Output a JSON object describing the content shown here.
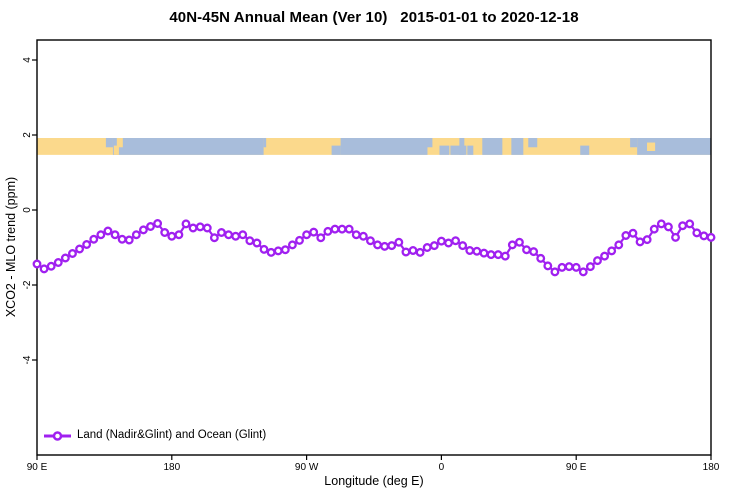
{
  "chart_data": {
    "type": "line",
    "title": "40N-45N Annual Mean (Ver 10)   2015-01-01 to 2020-12-18",
    "xlabel": "Longitude (deg E)",
    "ylabel": "XCO2 - MLO trend (ppm)",
    "grid": false,
    "x_axis": {
      "span_deg": 450,
      "ticks": [
        {
          "deg": 0,
          "label": "90 E"
        },
        {
          "deg": 90,
          "label": "180"
        },
        {
          "deg": 180,
          "label": "90 W"
        },
        {
          "deg": 270,
          "label": "0"
        },
        {
          "deg": 360,
          "label": "90 E"
        },
        {
          "deg": 450,
          "label": "180"
        }
      ]
    },
    "y_axis": {
      "tick_values": [
        4,
        2,
        0,
        -2,
        -4
      ],
      "range_ppm": [
        -6.5,
        4.5
      ]
    },
    "series": [
      {
        "name": "Land (Nadir&Glint) and Ocean (Glint)",
        "color": "#A020F0",
        "marker": "open-circle",
        "lon_deg_offset_start": 0,
        "values_ppm": [
          -1.44,
          -1.57,
          -1.5,
          -1.4,
          -1.28,
          -1.16,
          -1.04,
          -0.92,
          -0.78,
          -0.66,
          -0.56,
          -0.66,
          -0.78,
          -0.8,
          -0.66,
          -0.53,
          -0.44,
          -0.36,
          -0.6,
          -0.7,
          -0.66,
          -0.37,
          -0.48,
          -0.45,
          -0.48,
          -0.74,
          -0.6,
          -0.66,
          -0.7,
          -0.66,
          -0.82,
          -0.88,
          -1.05,
          -1.13,
          -1.09,
          -1.06,
          -0.93,
          -0.81,
          -0.66,
          -0.59,
          -0.74,
          -0.57,
          -0.51,
          -0.51,
          -0.51,
          -0.66,
          -0.7,
          -0.82,
          -0.93,
          -0.97,
          -0.95,
          -0.86,
          -1.12,
          -1.08,
          -1.13,
          -1.0,
          -0.95,
          -0.83,
          -0.88,
          -0.82,
          -0.95,
          -1.08,
          -1.1,
          -1.15,
          -1.19,
          -1.19,
          -1.23,
          -0.93,
          -0.86,
          -1.06,
          -1.11,
          -1.29,
          -1.49,
          -1.65,
          -1.53,
          -1.51,
          -1.53,
          -1.65,
          -1.51,
          -1.35,
          -1.23,
          -1.09,
          -0.93,
          -0.68,
          -0.62,
          -0.85,
          -0.79,
          -0.51,
          -0.37,
          -0.45,
          -0.73,
          -0.42,
          -0.37,
          -0.61,
          -0.69,
          -0.73
        ]
      }
    ],
    "land_ocean_band": {
      "top_ppm": 1.92,
      "bottom_ppm": 1.47,
      "land_color": "#FBD98C",
      "ocean_color": "#A8BDDB",
      "ocean_segments": [
        {
          "from_deg": 46.0,
          "to_deg": 50.7,
          "part": "top"
        },
        {
          "from_deg": 50.7,
          "to_deg": 151.3,
          "part": "full"
        },
        {
          "from_deg": 151.3,
          "to_deg": 153.0,
          "part": "top"
        },
        {
          "from_deg": 196.7,
          "to_deg": 202.7,
          "part": "bottom"
        },
        {
          "from_deg": 202.7,
          "to_deg": 260.7,
          "part": "full"
        },
        {
          "from_deg": 256.7,
          "to_deg": 264.0,
          "part": "top"
        },
        {
          "from_deg": 268.7,
          "to_deg": 275.3,
          "part": "bottom"
        },
        {
          "from_deg": 276.0,
          "to_deg": 286.7,
          "part": "bottom"
        },
        {
          "from_deg": 282.0,
          "to_deg": 285.3,
          "part": "full"
        },
        {
          "from_deg": 287.3,
          "to_deg": 291.3,
          "part": "bottom"
        },
        {
          "from_deg": 297.3,
          "to_deg": 310.7,
          "part": "full"
        },
        {
          "from_deg": 316.7,
          "to_deg": 324.7,
          "part": "full"
        },
        {
          "from_deg": 328.0,
          "to_deg": 334.0,
          "part": "top"
        },
        {
          "from_deg": 362.7,
          "to_deg": 368.7,
          "part": "bottom"
        },
        {
          "from_deg": 396.0,
          "to_deg": 400.7,
          "part": "top"
        },
        {
          "from_deg": 400.7,
          "to_deg": 450.0,
          "part": "full"
        }
      ],
      "land_islands": [
        {
          "from_deg": 51.3,
          "to_deg": 54.7,
          "part": "bottom"
        },
        {
          "from_deg": 53.3,
          "to_deg": 57.3,
          "part": "top"
        },
        {
          "from_deg": 407.3,
          "to_deg": 412.7,
          "part": "mid"
        }
      ]
    },
    "legend": {
      "position": "bottom-left",
      "entries": [
        {
          "label": "Land (Nadir&Glint) and Ocean (Glint)",
          "color": "#A020F0",
          "marker": "open-circle"
        }
      ]
    }
  }
}
